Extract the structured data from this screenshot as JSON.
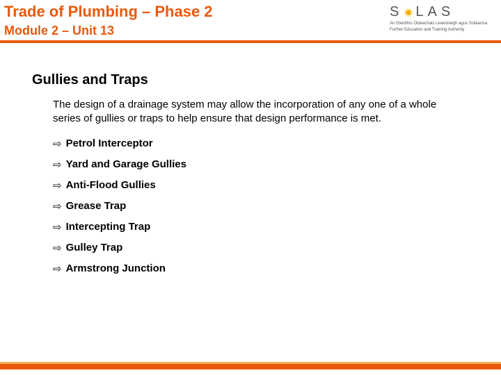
{
  "header": {
    "title_main": "Trade of Plumbing – Phase 2",
    "title_sub": "Module 2 – Unit 13",
    "logo_letters": [
      "S",
      "L",
      "A",
      "S"
    ],
    "logo_tagline1": "An tSeirbhís Oideachais Leanúnaigh agus Scileanna",
    "logo_tagline2": "Further Education and Training Authority"
  },
  "section": {
    "title": "Gullies and Traps",
    "intro": "The design of a drainage system may allow the incorporation of any one of a whole series of gullies or traps to help ensure that design performance is met.",
    "items": [
      "Petrol Interceptor",
      "Yard and Garage Gullies",
      "Anti-Flood Gullies",
      "Grease Trap",
      "Intercepting Trap",
      "Gulley Trap",
      "Armstrong Junction"
    ]
  },
  "colors": {
    "accent": "#e8590c",
    "footer_top": "#f4b65a",
    "text": "#000000",
    "logo_gray": "#555555",
    "sun": "#f4b400"
  }
}
